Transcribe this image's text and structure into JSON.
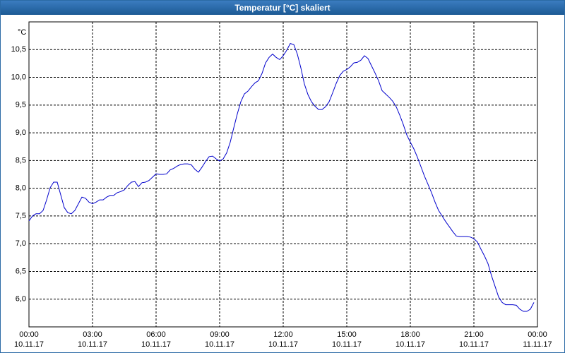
{
  "chart_data": {
    "type": "line",
    "title": "Temperatur [°C] skaliert",
    "ylabel": "°C",
    "x": [
      0,
      10,
      20,
      30,
      40,
      50,
      60,
      70,
      80,
      90,
      100,
      110,
      120,
      130,
      140,
      150,
      160,
      170,
      180,
      190,
      200,
      210,
      220,
      230,
      240,
      250,
      260,
      270,
      280,
      290,
      300,
      310,
      320,
      330,
      340,
      350,
      360,
      370,
      380,
      390,
      400,
      410,
      420,
      430,
      440,
      450,
      460,
      470,
      480,
      490,
      500,
      510,
      520,
      530,
      540,
      550,
      560,
      570,
      580,
      590,
      600,
      610,
      620,
      630,
      640,
      650,
      660,
      670,
      680,
      690,
      700,
      710,
      720,
      730,
      740,
      750,
      760,
      770,
      780,
      790,
      800,
      810,
      820,
      830,
      840,
      850,
      860,
      870,
      880,
      890,
      900,
      910,
      920,
      930,
      940,
      950,
      960,
      970,
      980,
      990,
      1000,
      1010,
      1020,
      1030,
      1040,
      1050,
      1060,
      1070,
      1080,
      1090,
      1100,
      1110,
      1120,
      1130,
      1140,
      1150,
      1160,
      1170,
      1180,
      1190,
      1200,
      1210,
      1220,
      1230,
      1240,
      1250,
      1260,
      1270,
      1280,
      1290,
      1300,
      1310,
      1320,
      1330,
      1340,
      1350,
      1360,
      1370,
      1380,
      1390,
      1400,
      1410,
      1420,
      1430
    ],
    "values": [
      7.41,
      7.5,
      7.54,
      7.54,
      7.6,
      7.79,
      8.01,
      8.11,
      8.11,
      7.88,
      7.65,
      7.56,
      7.54,
      7.6,
      7.72,
      7.84,
      7.82,
      7.75,
      7.72,
      7.75,
      7.79,
      7.79,
      7.84,
      7.87,
      7.87,
      7.92,
      7.94,
      7.97,
      8.05,
      8.11,
      8.12,
      8.03,
      8.1,
      8.11,
      8.14,
      8.2,
      8.26,
      8.25,
      8.25,
      8.26,
      8.33,
      8.36,
      8.4,
      8.43,
      8.44,
      8.44,
      8.42,
      8.34,
      8.29,
      8.38,
      8.48,
      8.57,
      8.58,
      8.53,
      8.49,
      8.53,
      8.64,
      8.83,
      9.09,
      9.34,
      9.56,
      9.7,
      9.75,
      9.83,
      9.9,
      9.94,
      10.07,
      10.26,
      10.36,
      10.42,
      10.36,
      10.32,
      10.39,
      10.49,
      10.61,
      10.59,
      10.42,
      10.17,
      9.88,
      9.69,
      9.56,
      9.48,
      9.42,
      9.42,
      9.47,
      9.56,
      9.72,
      9.89,
      10.03,
      10.11,
      10.14,
      10.19,
      10.26,
      10.27,
      10.31,
      10.39,
      10.34,
      10.21,
      10.08,
      9.94,
      9.76,
      9.7,
      9.64,
      9.57,
      9.47,
      9.32,
      9.15,
      8.96,
      8.83,
      8.71,
      8.56,
      8.39,
      8.22,
      8.07,
      7.92,
      7.75,
      7.6,
      7.5,
      7.4,
      7.31,
      7.22,
      7.14,
      7.13,
      7.13,
      7.13,
      7.12,
      7.09,
      7.03,
      6.9,
      6.78,
      6.64,
      6.42,
      6.23,
      6.04,
      5.94,
      5.9,
      5.9,
      5.9,
      5.89,
      5.82,
      5.78,
      5.78,
      5.82,
      5.94
    ],
    "color": "#0000cc",
    "xlim": [
      0,
      1440
    ],
    "xticks": [
      {
        "value": 0,
        "label": "00:00\n10.11.17"
      },
      {
        "value": 180,
        "label": "03:00\n10.11.17"
      },
      {
        "value": 360,
        "label": "06:00\n10.11.17"
      },
      {
        "value": 540,
        "label": "09:00\n10.11.17"
      },
      {
        "value": 720,
        "label": "12:00\n10.11.17"
      },
      {
        "value": 900,
        "label": "15:00\n10.11.17"
      },
      {
        "value": 1080,
        "label": "18:00\n10.11.17"
      },
      {
        "value": 1260,
        "label": "21:00\n10.11.17"
      },
      {
        "value": 1440,
        "label": "00:00\n11.11.17"
      }
    ],
    "ylim": [
      5.5,
      11.0
    ],
    "yticks": [
      {
        "value": 6.0,
        "label": "6,0"
      },
      {
        "value": 6.5,
        "label": "6,5"
      },
      {
        "value": 7.0,
        "label": "7,0"
      },
      {
        "value": 7.5,
        "label": "7,5"
      },
      {
        "value": 8.0,
        "label": "8,0"
      },
      {
        "value": 8.5,
        "label": "8,5"
      },
      {
        "value": 9.0,
        "label": "9,0"
      },
      {
        "value": 9.5,
        "label": "9,5"
      },
      {
        "value": 10.0,
        "label": "10,0"
      },
      {
        "value": 10.5,
        "label": "10,5"
      }
    ],
    "grid": true
  }
}
